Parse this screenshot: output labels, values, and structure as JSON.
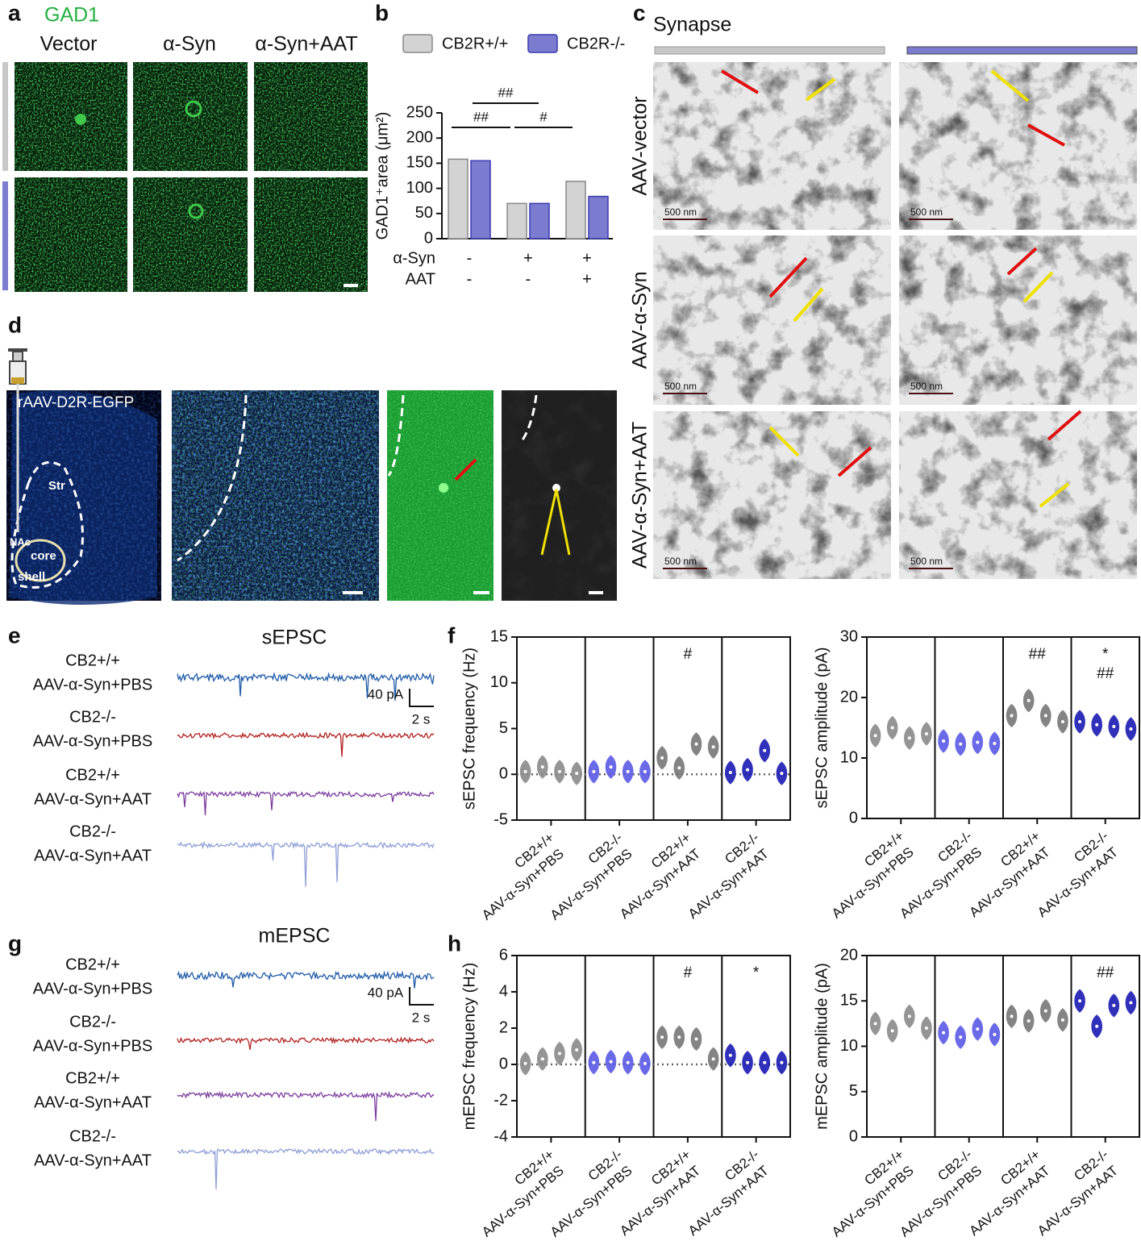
{
  "figure": {
    "panel_labels": [
      "a",
      "b",
      "c",
      "d",
      "e",
      "f",
      "g",
      "h"
    ],
    "a": {
      "stain": "GAD1",
      "columns": [
        "Vector",
        "α-Syn",
        "α-Syn+AAT"
      ]
    },
    "c": {
      "title": "Synapse",
      "rows": [
        "AAV-vector",
        "AAV-α-Syn",
        "AAV-α-Syn+AAT"
      ],
      "scale_labels": [
        "500 nm",
        "500 nm",
        "500 nm",
        "500 nm",
        "500 nm",
        "500 nm"
      ]
    },
    "d": {
      "virus": "rAAV-D2R-EGFP",
      "regions": [
        "Str",
        "NAc",
        "core",
        "shell"
      ]
    },
    "e": {
      "title": "sEPSC",
      "traces": [
        {
          "genotype": "CB2+/+",
          "treatment": "AAV-α-Syn+PBS"
        },
        {
          "genotype": "CB2-/-",
          "treatment": "AAV-α-Syn+PBS"
        },
        {
          "genotype": "CB2+/+",
          "treatment": "AAV-α-Syn+AAT"
        },
        {
          "genotype": "CB2-/-",
          "treatment": "AAV-α-Syn+AAT"
        }
      ],
      "scale_current": "40 pA",
      "scale_time": "2 s"
    },
    "g": {
      "title": "mEPSC",
      "traces": [
        {
          "genotype": "CB2+/+",
          "treatment": "AAV-α-Syn+PBS"
        },
        {
          "genotype": "CB2-/-",
          "treatment": "AAV-α-Syn+PBS"
        },
        {
          "genotype": "CB2+/+",
          "treatment": "AAV-α-Syn+AAT"
        },
        {
          "genotype": "CB2-/-",
          "treatment": "AAV-α-Syn+AAT"
        }
      ],
      "scale_current": "40 pA",
      "scale_time": "2 s"
    }
  },
  "chart_data": [
    {
      "type": "bar",
      "y_label": "GAD1⁺area (μm²)",
      "series": [
        {
          "name": "CB2R+/+",
          "color": "#d3d3d3",
          "values": [
            158,
            70,
            114
          ]
        },
        {
          "name": "CB2R-/-",
          "color": "#7b7bd0",
          "values": [
            155,
            70,
            84
          ]
        }
      ],
      "row_labels": [
        {
          "label": "α-Syn",
          "signs": [
            "-",
            "+",
            "+"
          ]
        },
        {
          "label": "AAT",
          "signs": [
            "-",
            "-",
            "+"
          ]
        }
      ],
      "annotations": [
        "##",
        "##",
        "#"
      ],
      "ylim": [
        0,
        250
      ],
      "yticks": [
        0,
        50,
        100,
        150,
        200,
        250
      ]
    },
    {
      "type": "violin",
      "y_label": "sEPSC frequency (Hz)",
      "categories": [
        {
          "genotype": "CB2+/+",
          "treatment": "AAV-α-Syn+PBS"
        },
        {
          "genotype": "CB2-/-",
          "treatment": "AAV-α-Syn+PBS"
        },
        {
          "genotype": "CB2+/+",
          "treatment": "AAV-α-Syn+AAT"
        },
        {
          "genotype": "CB2-/-",
          "treatment": "AAV-α-Syn+AAT"
        }
      ],
      "colors": [
        "#8a8a8a",
        "#5a5ae6",
        "#777777",
        "#1a1ab4"
      ],
      "values": [
        [
          0.3,
          0.8,
          0.3,
          0.1
        ],
        [
          0.3,
          0.8,
          0.3,
          0.3
        ],
        [
          1.8,
          0.7,
          3.3,
          3
        ],
        [
          0.2,
          0.5,
          2.6,
          0.1
        ]
      ],
      "annotations": [
        [],
        [],
        [
          "#"
        ],
        []
      ],
      "zero_line": true,
      "ylim": [
        -5,
        15
      ],
      "yticks": [
        -5,
        0,
        5,
        10,
        15
      ]
    },
    {
      "type": "violin",
      "y_label": "sEPSC amplitude (pA)",
      "categories": [
        {
          "genotype": "CB2+/+",
          "treatment": "AAV-α-Syn+PBS"
        },
        {
          "genotype": "CB2-/-",
          "treatment": "AAV-α-Syn+PBS"
        },
        {
          "genotype": "CB2+/+",
          "treatment": "AAV-α-Syn+AAT"
        },
        {
          "genotype": "CB2-/-",
          "treatment": "AAV-α-Syn+AAT"
        }
      ],
      "colors": [
        "#8a8a8a",
        "#5a5ae6",
        "#777777",
        "#1a1ab4"
      ],
      "values": [
        [
          13.7,
          15,
          13.3,
          14
        ],
        [
          12.8,
          12.3,
          12.6,
          12.4
        ],
        [
          17,
          19.5,
          17,
          16
        ],
        [
          16,
          15.5,
          15.2,
          14.8
        ]
      ],
      "annotations": [
        [],
        [],
        [
          "##"
        ],
        [
          "*",
          "##"
        ]
      ],
      "zero_line": false,
      "ylim": [
        0,
        30
      ],
      "yticks": [
        0,
        10,
        20,
        30
      ]
    },
    {
      "type": "violin",
      "y_label": "mEPSC frequency (Hz)",
      "categories": [
        {
          "genotype": "CB2+/+",
          "treatment": "AAV-α-Syn+PBS"
        },
        {
          "genotype": "CB2-/-",
          "treatment": "AAV-α-Syn+PBS"
        },
        {
          "genotype": "CB2+/+",
          "treatment": "AAV-α-Syn+AAT"
        },
        {
          "genotype": "CB2-/-",
          "treatment": "AAV-α-Syn+AAT"
        }
      ],
      "colors": [
        "#8a8a8a",
        "#5a5ae6",
        "#777777",
        "#1a1ab4"
      ],
      "values": [
        [
          0.05,
          0.3,
          0.6,
          0.8
        ],
        [
          0.1,
          0.15,
          0.1,
          0.05
        ],
        [
          1.5,
          1.5,
          1.4,
          0.3
        ],
        [
          0.5,
          0.1,
          0.1,
          0.1
        ]
      ],
      "annotations": [
        [],
        [],
        [
          "#"
        ],
        [
          "*"
        ]
      ],
      "zero_line": true,
      "ylim": [
        -4,
        6
      ],
      "yticks": [
        -4,
        -2,
        0,
        2,
        4,
        6
      ]
    },
    {
      "type": "violin",
      "y_label": "mEPSC amplitude (pA)",
      "categories": [
        {
          "genotype": "CB2+/+",
          "treatment": "AAV-α-Syn+PBS"
        },
        {
          "genotype": "CB2-/-",
          "treatment": "AAV-α-Syn+PBS"
        },
        {
          "genotype": "CB2+/+",
          "treatment": "AAV-α-Syn+AAT"
        },
        {
          "genotype": "CB2-/-",
          "treatment": "AAV-α-Syn+AAT"
        }
      ],
      "colors": [
        "#8a8a8a",
        "#5a5ae6",
        "#777777",
        "#1a1ab4"
      ],
      "values": [
        [
          12.5,
          11.7,
          13.3,
          12
        ],
        [
          11.5,
          11,
          11.9,
          11.3
        ],
        [
          13.3,
          12.8,
          13.9,
          12.9
        ],
        [
          15,
          12.2,
          14.5,
          14.8
        ]
      ],
      "annotations": [
        [],
        [],
        [],
        [
          "##"
        ]
      ],
      "zero_line": false,
      "ylim": [
        0,
        20
      ],
      "yticks": [
        0,
        5,
        10,
        15,
        20
      ]
    }
  ]
}
